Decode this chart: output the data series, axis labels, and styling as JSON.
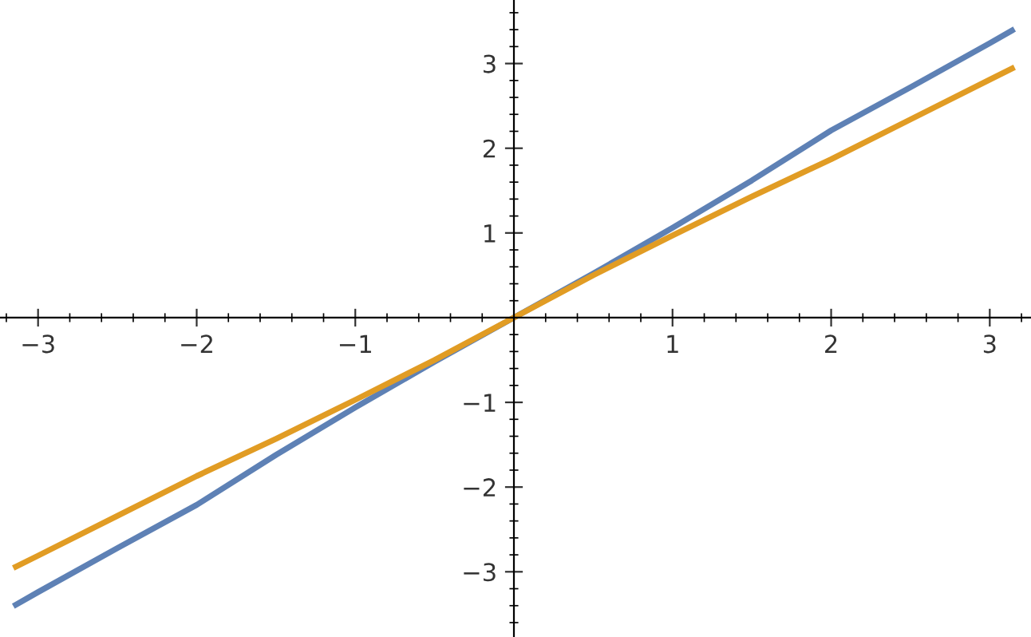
{
  "chart_data": {
    "type": "line",
    "xlim": [
      -3.24,
      3.26
    ],
    "ylim": [
      -3.77,
      3.75
    ],
    "xticks": [
      -3,
      -2,
      -1,
      1,
      2,
      3
    ],
    "yticks": [
      -3,
      -2,
      -1,
      1,
      2,
      3
    ],
    "grid": false,
    "legend": false,
    "marker": "none",
    "line_style": "solid",
    "series": [
      {
        "color": "#5e81b5",
        "x": [
          -3.14,
          -3,
          -2.5,
          -2,
          -1.5,
          -1,
          -0.5,
          0,
          0.5,
          1,
          1.5,
          2,
          2.5,
          3,
          3.14
        ],
        "values": [
          -3.39,
          -3.24,
          -2.72,
          -2.21,
          -1.62,
          -1.06,
          -0.52,
          0,
          0.52,
          1.06,
          1.62,
          2.21,
          2.72,
          3.24,
          3.39
        ]
      },
      {
        "color": "#e19c24",
        "x": [
          -3.14,
          -3,
          -2.5,
          -2,
          -1.5,
          -1,
          -0.5,
          0,
          0.5,
          1,
          1.5,
          2,
          2.5,
          3,
          3.14
        ],
        "values": [
          -2.94,
          -2.81,
          -2.34,
          -1.87,
          -1.43,
          -0.97,
          -0.5,
          0,
          0.5,
          0.97,
          1.43,
          1.87,
          2.34,
          2.81,
          2.94
        ]
      }
    ]
  }
}
